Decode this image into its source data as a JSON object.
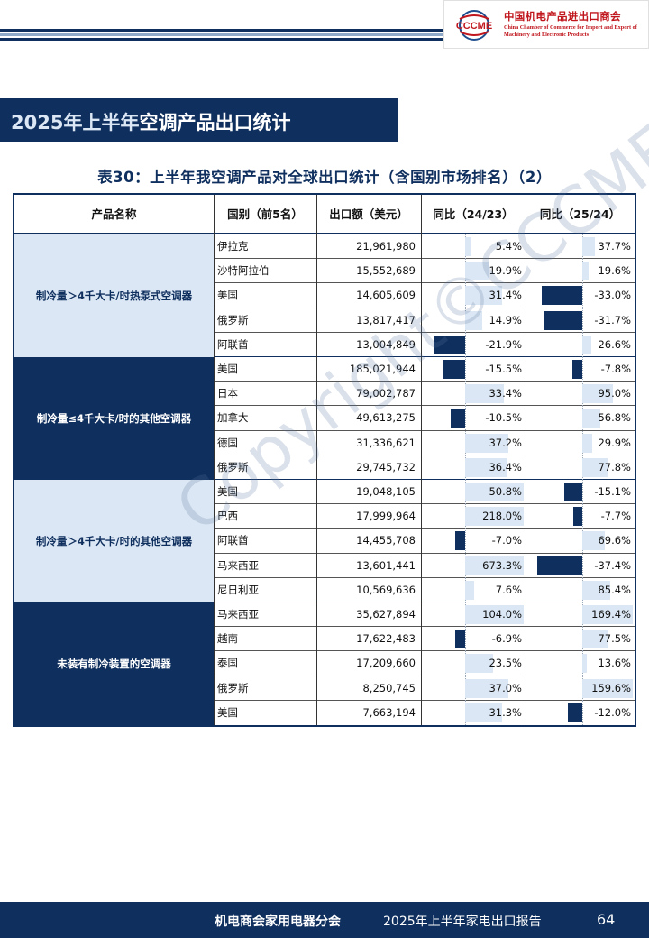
{
  "header": {
    "logo_text": "CCCME",
    "logo_cn": "中国机电产品进出口商会",
    "logo_en": "China Chamber of Commerce for Import and Export of Machinery and Electronic Products"
  },
  "section": {
    "title_highlight": "2025年上半年",
    "title_rest": "空调产品出口统计"
  },
  "table": {
    "caption": "表30：上半年我空调产品对全球出口统计（含国别市场排名）（2）",
    "columns": [
      "产品名称",
      "国别（前5名）",
      "出口额（美元）",
      "同比（24/23）",
      "同比（25/24）"
    ],
    "colors": {
      "dark": "#0f2f5e",
      "light": "#dbe7f4"
    },
    "groups": [
      {
        "name": "制冷量＞4千大卡/时热泵式空调器",
        "style": "light",
        "rows": [
          {
            "country": "伊拉克",
            "amount": "21,961,980",
            "yoy1": "5.4%",
            "yoy1_value": 5.4,
            "yoy2": "37.7%",
            "yoy2_value": 37.7
          },
          {
            "country": "沙特阿拉伯",
            "amount": "15,552,689",
            "yoy1": "19.9%",
            "yoy1_value": 19.9,
            "yoy2": "19.6%",
            "yoy2_value": 19.6
          },
          {
            "country": "美国",
            "amount": "14,605,609",
            "yoy1": "31.4%",
            "yoy1_value": 31.4,
            "yoy2": "-33.0%",
            "yoy2_value": -33.0
          },
          {
            "country": "俄罗斯",
            "amount": "13,817,417",
            "yoy1": "14.9%",
            "yoy1_value": 14.9,
            "yoy2": "-31.7%",
            "yoy2_value": -31.7
          },
          {
            "country": "阿联酋",
            "amount": "13,004,849",
            "yoy1": "-21.9%",
            "yoy1_value": -21.9,
            "yoy2": "26.6%",
            "yoy2_value": 26.6
          }
        ]
      },
      {
        "name": "制冷量≤4千大卡/时的其他空调器",
        "style": "dark",
        "rows": [
          {
            "country": "美国",
            "amount": "185,021,944",
            "yoy1": "-15.5%",
            "yoy1_value": -15.5,
            "yoy2": "-7.8%",
            "yoy2_value": -7.8
          },
          {
            "country": "日本",
            "amount": "79,002,787",
            "yoy1": "33.4%",
            "yoy1_value": 33.4,
            "yoy2": "95.0%",
            "yoy2_value": 95.0
          },
          {
            "country": "加拿大",
            "amount": "49,613,275",
            "yoy1": "-10.5%",
            "yoy1_value": -10.5,
            "yoy2": "56.8%",
            "yoy2_value": 56.8
          },
          {
            "country": "德国",
            "amount": "31,336,621",
            "yoy1": "37.2%",
            "yoy1_value": 37.2,
            "yoy2": "29.9%",
            "yoy2_value": 29.9
          },
          {
            "country": "俄罗斯",
            "amount": "29,745,732",
            "yoy1": "36.4%",
            "yoy1_value": 36.4,
            "yoy2": "77.8%",
            "yoy2_value": 77.8
          }
        ]
      },
      {
        "name": "制冷量＞4千大卡/时的其他空调器",
        "style": "light",
        "rows": [
          {
            "country": "美国",
            "amount": "19,048,105",
            "yoy1": "50.8%",
            "yoy1_value": 50.8,
            "yoy2": "-15.1%",
            "yoy2_value": -15.1
          },
          {
            "country": "巴西",
            "amount": "17,999,964",
            "yoy1": "218.0%",
            "yoy1_value": 218.0,
            "yoy2": "-7.7%",
            "yoy2_value": -7.7
          },
          {
            "country": "阿联酋",
            "amount": "14,455,708",
            "yoy1": "-7.0%",
            "yoy1_value": -7.0,
            "yoy2": "69.6%",
            "yoy2_value": 69.6
          },
          {
            "country": "马来西亚",
            "amount": "13,601,441",
            "yoy1": "673.3%",
            "yoy1_value": 673.3,
            "yoy2": "-37.4%",
            "yoy2_value": -37.4
          },
          {
            "country": "尼日利亚",
            "amount": "10,569,636",
            "yoy1": "7.6%",
            "yoy1_value": 7.6,
            "yoy2": "85.4%",
            "yoy2_value": 85.4
          }
        ]
      },
      {
        "name": "未装有制冷装置的空调器",
        "style": "dark",
        "rows": [
          {
            "country": "马来西亚",
            "amount": "35,627,894",
            "yoy1": "104.0%",
            "yoy1_value": 104.0,
            "yoy2": "169.4%",
            "yoy2_value": 169.4
          },
          {
            "country": "越南",
            "amount": "17,622,483",
            "yoy1": "-6.9%",
            "yoy1_value": -6.9,
            "yoy2": "77.5%",
            "yoy2_value": 77.5
          },
          {
            "country": "泰国",
            "amount": "17,209,660",
            "yoy1": "23.5%",
            "yoy1_value": 23.5,
            "yoy2": "13.6%",
            "yoy2_value": 13.6
          },
          {
            "country": "俄罗斯",
            "amount": "8,250,745",
            "yoy1": "37.0%",
            "yoy1_value": 37.0,
            "yoy2": "159.6%",
            "yoy2_value": 159.6
          },
          {
            "country": "美国",
            "amount": "7,663,194",
            "yoy1": "31.3%",
            "yoy1_value": 31.3,
            "yoy2": "-12.0%",
            "yoy2_value": -12.0
          }
        ]
      }
    ]
  },
  "watermark": "Copyright©CCCME",
  "footer": {
    "org": "机电商会家用电器分会",
    "report_highlight": "2025年上半年",
    "report_rest": "家电出口报告",
    "page": "64"
  }
}
